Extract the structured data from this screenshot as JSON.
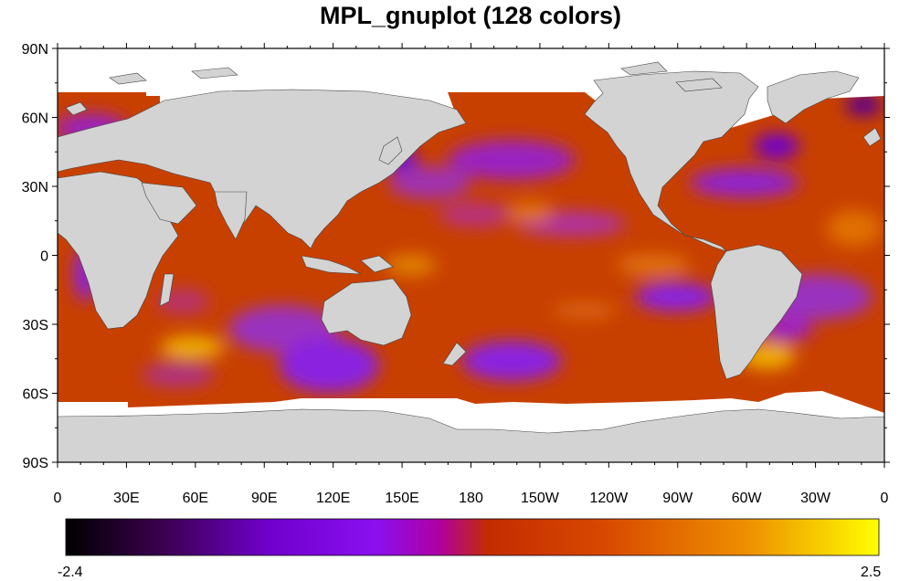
{
  "title": "MPL_gnuplot (128 colors)",
  "map": {
    "projection": "cylindrical-equidistant",
    "lon_range": [
      0,
      360
    ],
    "lat_range": [
      -90,
      90
    ],
    "land_color": "#d3d3d3",
    "no_data_color": "#ffffff",
    "lat_ticks": [
      "90N",
      "60N",
      "30N",
      "0",
      "30S",
      "60S",
      "90S"
    ],
    "lon_ticks": [
      "0",
      "30E",
      "60E",
      "90E",
      "120E",
      "150E",
      "180",
      "150W",
      "120W",
      "90W",
      "60W",
      "30W",
      "0"
    ]
  },
  "colorbar": {
    "colormap": "MPL_gnuplot",
    "n_colors": 128,
    "min_label": "-2.4",
    "max_label": "2.5",
    "stops": [
      "#000000",
      "#3c0050",
      "#7000cc",
      "#8a10f0",
      "#b000a0",
      "#c42c00",
      "#d84800",
      "#ee9000",
      "#ffff00"
    ]
  }
}
